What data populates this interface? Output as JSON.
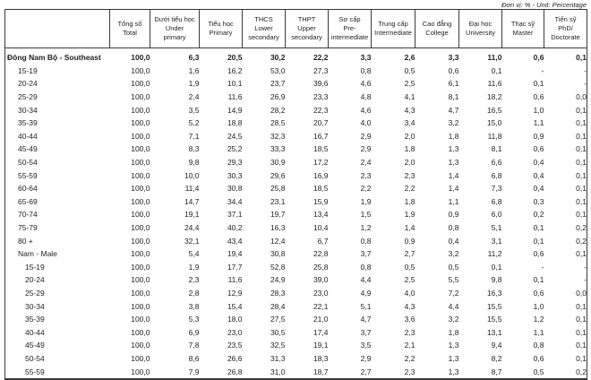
{
  "unit_note": "Đơn vị: % - Unit: Percentage",
  "table": {
    "corner_label": "",
    "columns": [
      "Tổng số\nTotal",
      "Dưới tiểu học\nUnder\nprimary",
      "Tiểu học\nPrimary",
      "THCS\nLower\nsecondary",
      "THPT\nUpper\nsecondary",
      "Sơ cấp\nPre-\nintermediate",
      "Trung cấp\nIntermediate",
      "Cao đẳng\nCollege",
      "Đại học\nUniversity",
      "Thạc sỹ\nMaster",
      "Tiến sỹ\nPhD/\nDoctorate"
    ],
    "rows": [
      {
        "label": "Đông Nam Bộ - Southeast",
        "indent": 0,
        "bold": true,
        "values": [
          "100,0",
          "6,3",
          "20,5",
          "30,2",
          "22,2",
          "3,3",
          "2,6",
          "3,3",
          "11,0",
          "0,6",
          "0,1"
        ]
      },
      {
        "label": "15-19",
        "indent": 1,
        "bold": false,
        "values": [
          "100,0",
          "1,6",
          "16,2",
          "53,0",
          "27,3",
          "0,8",
          "0,5",
          "0,6",
          "0,1",
          "-",
          "-"
        ]
      },
      {
        "label": "20-24",
        "indent": 1,
        "bold": false,
        "values": [
          "100,0",
          "1,9",
          "10,1",
          "23,7",
          "39,6",
          "4,6",
          "2,5",
          "6,1",
          "11,6",
          "0,1",
          "-"
        ]
      },
      {
        "label": "25-29",
        "indent": 1,
        "bold": false,
        "values": [
          "100,0",
          "2,4",
          "11,6",
          "26,9",
          "23,3",
          "4,8",
          "4,1",
          "8,1",
          "18,2",
          "0,6",
          "0,0"
        ]
      },
      {
        "label": "30-34",
        "indent": 1,
        "bold": false,
        "values": [
          "100,0",
          "3,5",
          "14,9",
          "28,2",
          "22,3",
          "4,6",
          "4,3",
          "4,7",
          "16,5",
          "1,0",
          "0,1"
        ]
      },
      {
        "label": "35-39",
        "indent": 1,
        "bold": false,
        "values": [
          "100,0",
          "5,2",
          "18,8",
          "28,5",
          "20,7",
          "4,0",
          "3,4",
          "3,2",
          "15,0",
          "1,1",
          "0,1"
        ]
      },
      {
        "label": "40-44",
        "indent": 1,
        "bold": false,
        "values": [
          "100,0",
          "7,1",
          "24,5",
          "32,3",
          "16,7",
          "2,9",
          "2,0",
          "1,8",
          "11,8",
          "0,9",
          "0,1"
        ]
      },
      {
        "label": "45-49",
        "indent": 1,
        "bold": false,
        "values": [
          "100,0",
          "8,3",
          "25,2",
          "33,3",
          "18,5",
          "2,9",
          "1,8",
          "1,3",
          "8,1",
          "0,6",
          "0,1"
        ]
      },
      {
        "label": "50-54",
        "indent": 1,
        "bold": false,
        "values": [
          "100,0",
          "9,8",
          "29,3",
          "30,9",
          "17,2",
          "2,4",
          "2,0",
          "1,3",
          "6,6",
          "0,4",
          "0,1"
        ]
      },
      {
        "label": "55-59",
        "indent": 1,
        "bold": false,
        "values": [
          "100,0",
          "10,0",
          "30,3",
          "29,6",
          "16,9",
          "2,3",
          "2,3",
          "1,4",
          "6,8",
          "0,4",
          "0,1"
        ]
      },
      {
        "label": "60-64",
        "indent": 1,
        "bold": false,
        "values": [
          "100,0",
          "11,4",
          "30,8",
          "25,8",
          "18,5",
          "2,2",
          "2,2",
          "1,4",
          "7,3",
          "0,4",
          "0,1"
        ]
      },
      {
        "label": "65-69",
        "indent": 1,
        "bold": false,
        "values": [
          "100,0",
          "14,7",
          "34,4",
          "23,1",
          "15,9",
          "1,9",
          "1,8",
          "1,1",
          "6,8",
          "0,3",
          "0,1"
        ]
      },
      {
        "label": "70-74",
        "indent": 1,
        "bold": false,
        "values": [
          "100,0",
          "19,1",
          "37,1",
          "19,7",
          "13,4",
          "1,5",
          "1,9",
          "0,9",
          "6,0",
          "0,2",
          "0,1"
        ]
      },
      {
        "label": "75-79",
        "indent": 1,
        "bold": false,
        "values": [
          "100,0",
          "24,4",
          "40,2",
          "16,3",
          "10,4",
          "1,2",
          "1,4",
          "0,8",
          "5,1",
          "0,1",
          "0,2"
        ]
      },
      {
        "label": "80 +",
        "indent": 1,
        "bold": false,
        "values": [
          "100,0",
          "32,1",
          "43,4",
          "12,4",
          "6,7",
          "0,8",
          "0,9",
          "0,4",
          "3,1",
          "0,1",
          "0,2"
        ]
      },
      {
        "label": "Nam - Male",
        "indent": 1,
        "bold": false,
        "values": [
          "100,0",
          "5,4",
          "19,4",
          "30,8",
          "22,8",
          "3,7",
          "2,7",
          "3,2",
          "11,2",
          "0,6",
          "0,1"
        ]
      },
      {
        "label": "15-19",
        "indent": 2,
        "bold": false,
        "values": [
          "100,0",
          "1,9",
          "17,7",
          "52,8",
          "25,8",
          "0,8",
          "0,5",
          "0,5",
          "0,1",
          "-",
          "-"
        ]
      },
      {
        "label": "20-24",
        "indent": 2,
        "bold": false,
        "values": [
          "100,0",
          "2,3",
          "11,6",
          "24,9",
          "39,0",
          "4,4",
          "2,5",
          "5,5",
          "9,8",
          "0,1",
          "-"
        ]
      },
      {
        "label": "25-29",
        "indent": 2,
        "bold": false,
        "values": [
          "100,0",
          "2,8",
          "12,9",
          "28,3",
          "23,0",
          "4,9",
          "4,0",
          "7,2",
          "16,3",
          "0,6",
          "0,0"
        ]
      },
      {
        "label": "30-34",
        "indent": 2,
        "bold": false,
        "values": [
          "100,0",
          "3,8",
          "15,4",
          "28,4",
          "22,1",
          "5,1",
          "4,3",
          "4,4",
          "15,5",
          "1,0",
          "0,1"
        ]
      },
      {
        "label": "35-39",
        "indent": 2,
        "bold": false,
        "values": [
          "100,0",
          "5,3",
          "18,0",
          "27,5",
          "21,0",
          "4,7",
          "3,6",
          "3,2",
          "15,5",
          "1,2",
          "0,1"
        ]
      },
      {
        "label": "40-44",
        "indent": 2,
        "bold": false,
        "values": [
          "100,0",
          "6,9",
          "23,0",
          "30,5",
          "17,4",
          "3,7",
          "2,3",
          "1,8",
          "13,1",
          "1,1",
          "0,1"
        ]
      },
      {
        "label": "45-49",
        "indent": 2,
        "bold": false,
        "values": [
          "100,0",
          "7,8",
          "23,5",
          "32,5",
          "19,1",
          "3,5",
          "2,1",
          "1,3",
          "9,4",
          "0,8",
          "0,1"
        ]
      },
      {
        "label": "50-54",
        "indent": 2,
        "bold": false,
        "values": [
          "100,0",
          "8,6",
          "26,6",
          "31,3",
          "18,3",
          "2,9",
          "2,2",
          "1,3",
          "8,2",
          "0,6",
          "0,1"
        ]
      },
      {
        "label": "55-59",
        "indent": 2,
        "bold": false,
        "values": [
          "100,0",
          "7,9",
          "26,8",
          "31,0",
          "18,7",
          "2,7",
          "2,3",
          "1,3",
          "8,7",
          "0,5",
          "0,2"
        ]
      }
    ]
  }
}
